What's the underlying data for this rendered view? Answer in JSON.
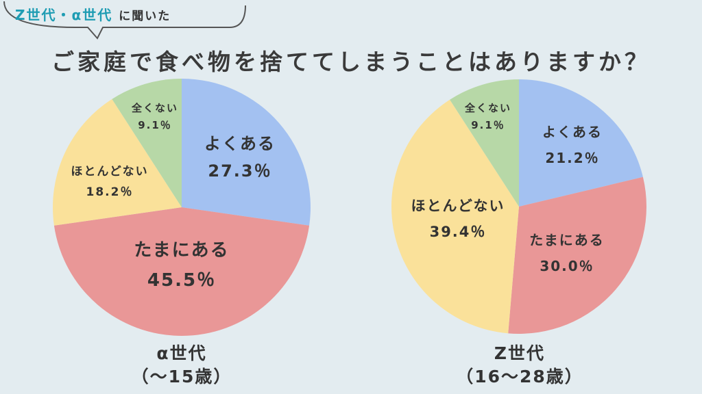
{
  "header": {
    "tag_highlight": "Z世代・α世代",
    "tag_suffix": "に聞いた",
    "question": "ご家庭で食べ物を捨ててしまうことはありますか？"
  },
  "colors": {
    "yoku_aru": "#a3c1f1",
    "tama_ni_aru": "#e99797",
    "hotondo_nai": "#fae19a",
    "mattaku_nai": "#b7d8a7",
    "accent": "#1e9cb3"
  },
  "chart_data": [
    {
      "type": "pie",
      "group_name": "α世代",
      "group_range": "（〜15歳）",
      "slices": [
        {
          "label": "よくある",
          "value": 27.3,
          "value_label": "27.3％"
        },
        {
          "label": "たまにある",
          "value": 45.5,
          "value_label": "45.5％"
        },
        {
          "label": "ほとんどない",
          "value": 18.2,
          "value_label": "18.2％"
        },
        {
          "label": "全くない",
          "value": 9.1,
          "value_label": "9.1％"
        }
      ]
    },
    {
      "type": "pie",
      "group_name": "Z世代",
      "group_range": "（16〜28歳）",
      "slices": [
        {
          "label": "よくある",
          "value": 21.2,
          "value_label": "21.2％"
        },
        {
          "label": "たまにある",
          "value": 30.0,
          "value_label": "30.0％"
        },
        {
          "label": "ほとんどない",
          "value": 39.4,
          "value_label": "39.4％"
        },
        {
          "label": "全くない",
          "value": 9.1,
          "value_label": "9.1％"
        }
      ]
    }
  ]
}
